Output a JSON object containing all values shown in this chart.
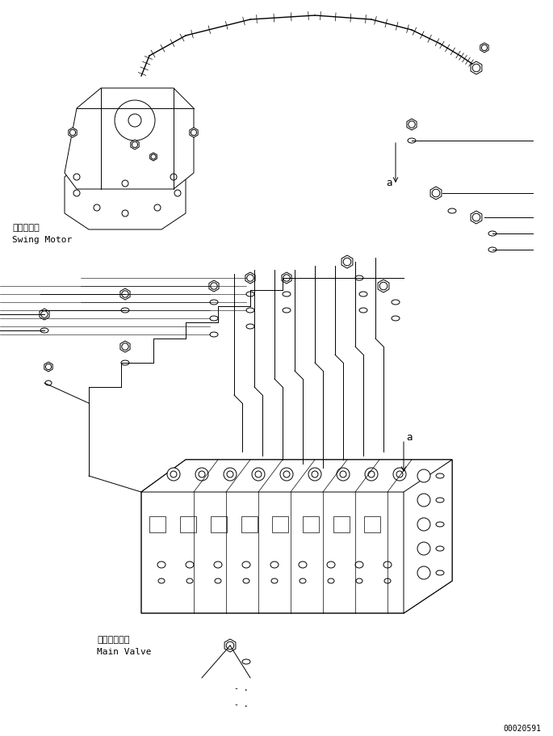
{
  "bg_color": "#ffffff",
  "line_color": "#000000",
  "fig_width": 6.85,
  "fig_height": 9.12,
  "dpi": 100,
  "label_swing_motor_jp": "旋回モータ",
  "label_swing_motor_en": "Swing Motor",
  "label_main_valve_jp": "メインバルブ",
  "label_main_valve_en": "Main Valve",
  "label_a": "a",
  "doc_number": "00020591"
}
